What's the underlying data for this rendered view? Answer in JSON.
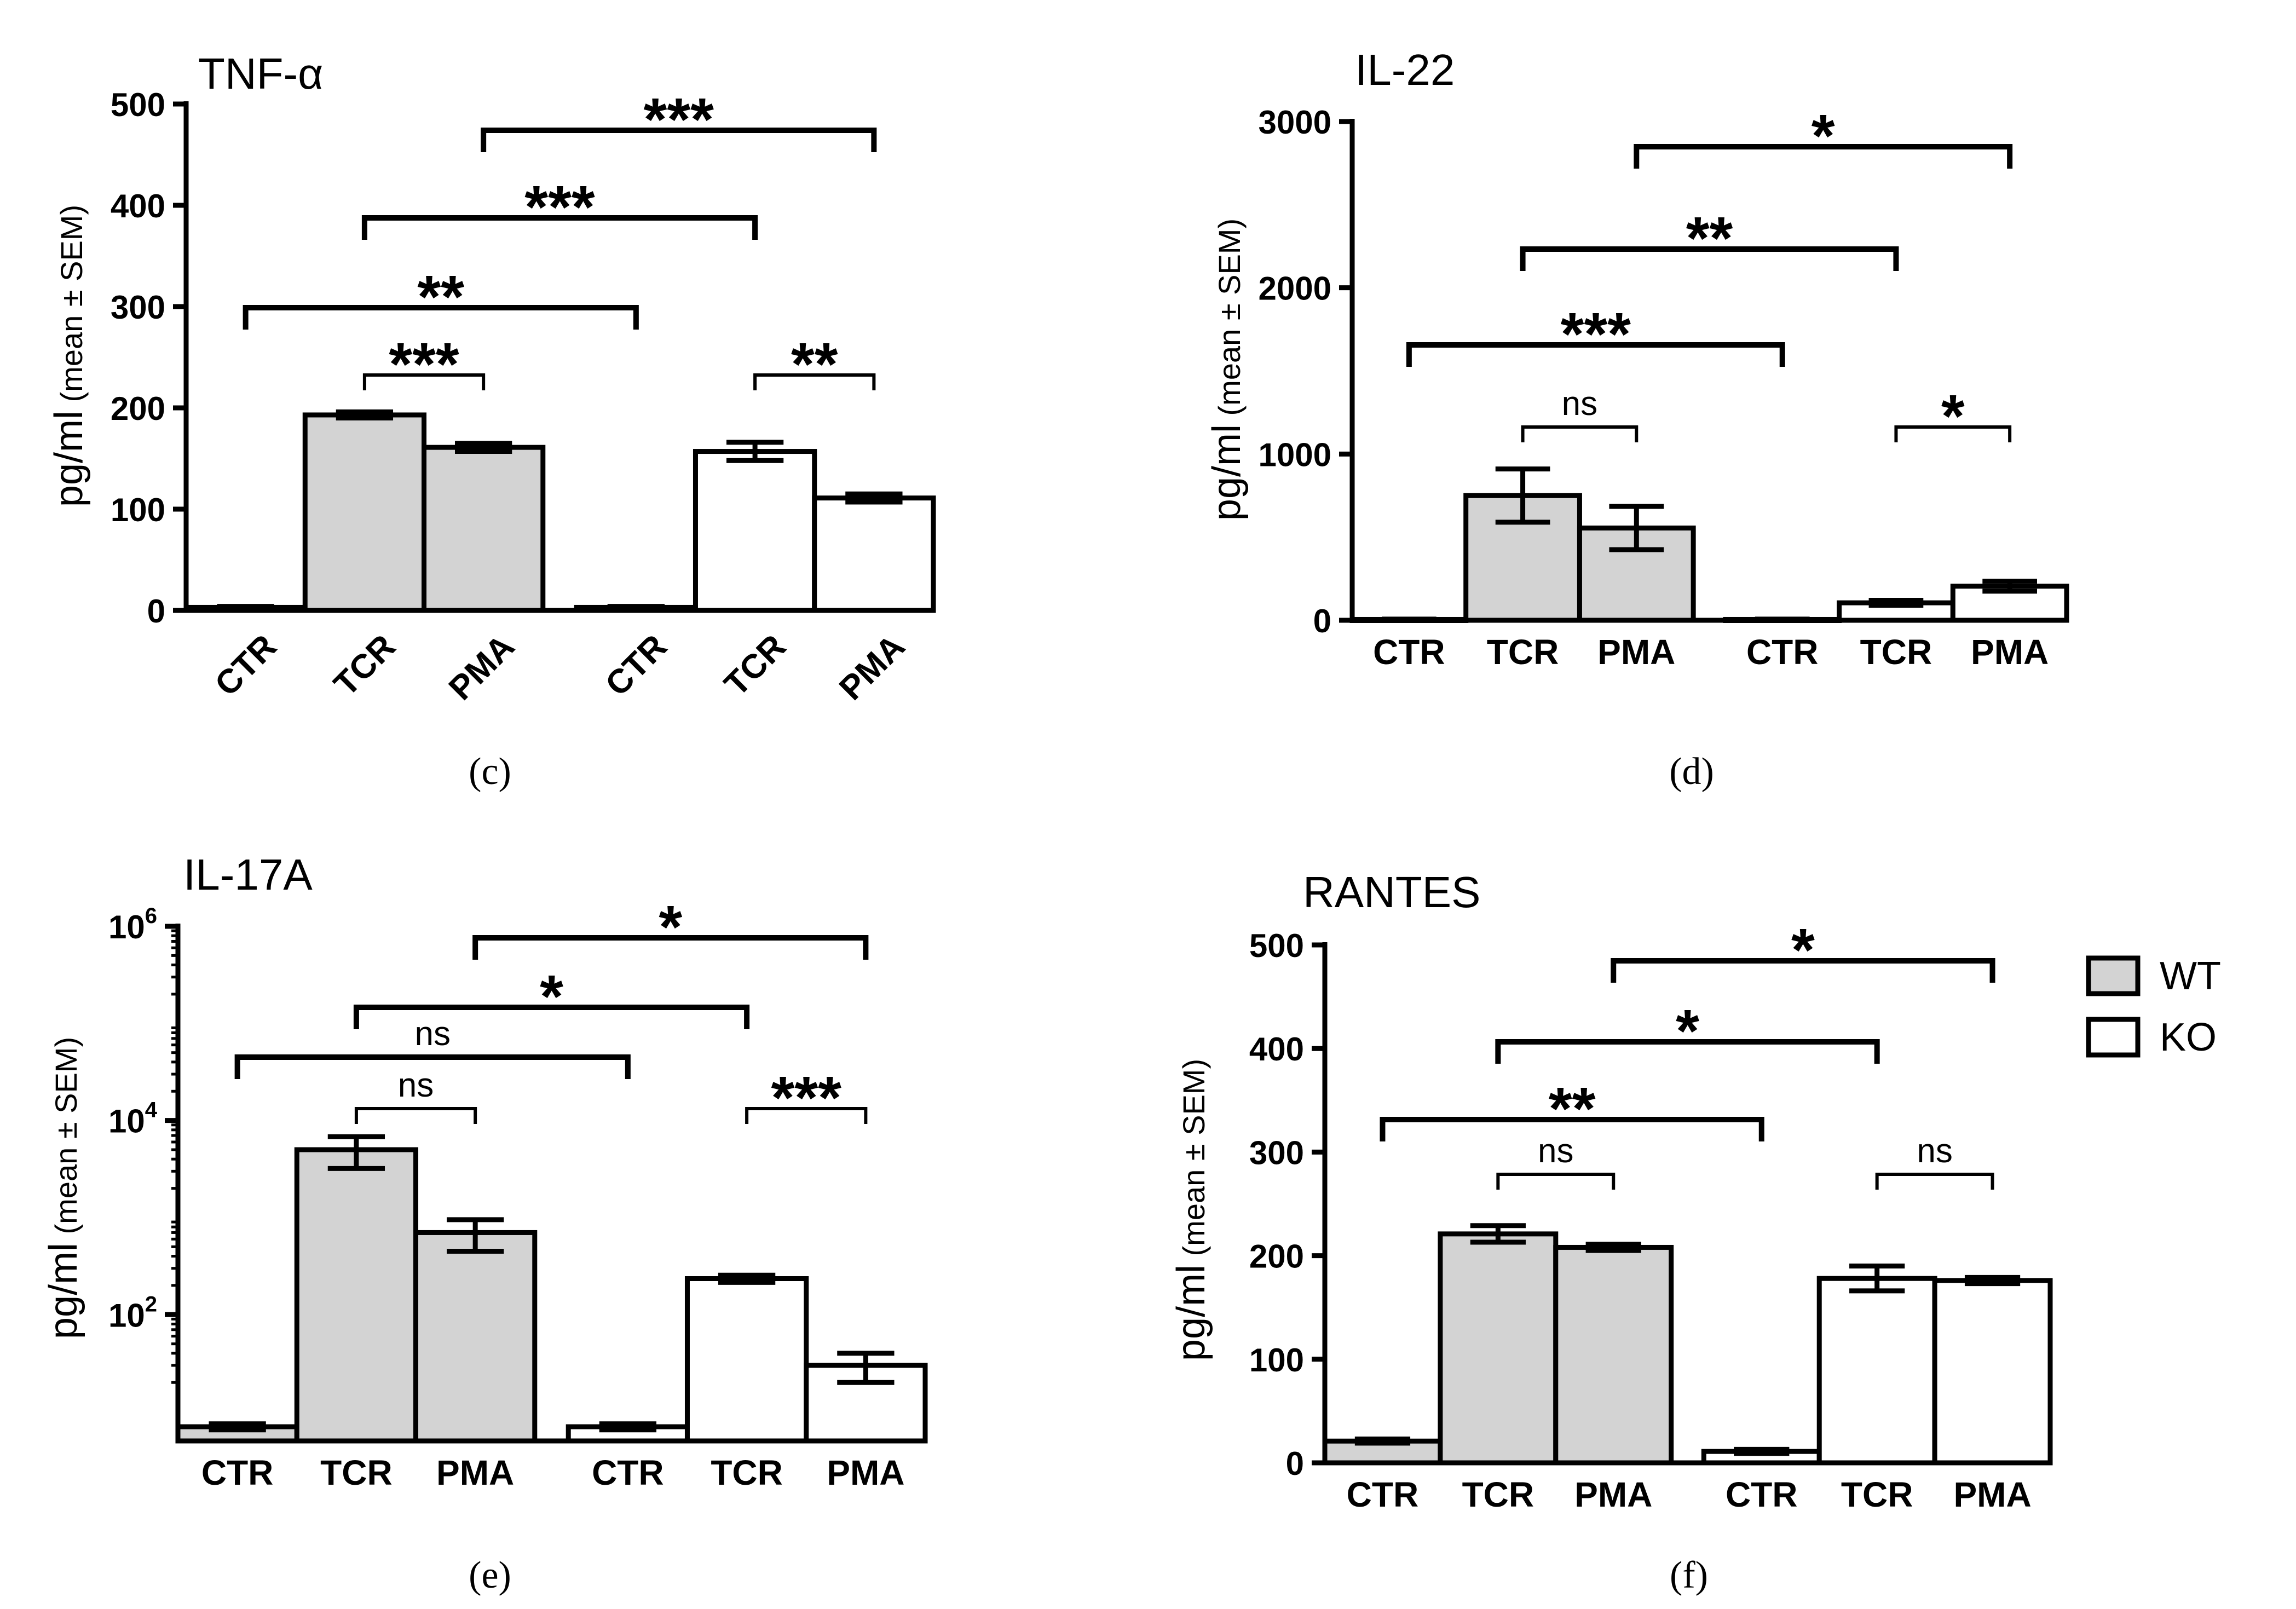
{
  "colors": {
    "wt_fill": "#d3d3d3",
    "ko_fill": "#ffffff",
    "stroke": "#000000"
  },
  "legend": {
    "position": "right-of-panel-f",
    "items": [
      {
        "label": "WT",
        "fill": "#d3d3d3"
      },
      {
        "label": "KO",
        "fill": "#ffffff"
      }
    ]
  },
  "chart_data": [
    {
      "id": "c",
      "panel_label": "(c)",
      "type": "bar",
      "title": "TNF-α",
      "ylabel_main": "pg/ml",
      "ylabel_sub": " (mean ± SEM)",
      "scale": "linear",
      "ylim": [
        0,
        500
      ],
      "yticks": [
        0,
        100,
        200,
        300,
        400,
        500
      ],
      "ytick_labels": [
        "0",
        "100",
        "200",
        "300",
        "400",
        "500"
      ],
      "x_labels_rotated": true,
      "categories": [
        "CTR",
        "TCR",
        "PMA",
        "CTR",
        "TCR",
        "PMA"
      ],
      "groups": [
        "WT",
        "WT",
        "WT",
        "KO",
        "KO",
        "KO"
      ],
      "values": [
        3,
        193,
        161,
        3,
        157,
        111
      ],
      "sem": [
        1,
        3,
        4,
        1,
        9,
        4
      ],
      "comparisons": [
        {
          "from": 1,
          "to": 2,
          "label": "***",
          "level": 0
        },
        {
          "from": 4,
          "to": 5,
          "label": "**",
          "level": 0
        },
        {
          "from": 0,
          "to": 3,
          "label": "**",
          "level": 1
        },
        {
          "from": 1,
          "to": 4,
          "label": "***",
          "level": 2
        },
        {
          "from": 2,
          "to": 5,
          "label": "***",
          "level": 3
        }
      ]
    },
    {
      "id": "d",
      "panel_label": "(d)",
      "type": "bar",
      "title": "IL-22",
      "ylabel_main": "pg/ml",
      "ylabel_sub": " (mean ± SEM)",
      "scale": "linear",
      "ylim": [
        0,
        3000
      ],
      "yticks": [
        0,
        1000,
        2000,
        3000
      ],
      "ytick_labels": [
        "0",
        "1000",
        "2000",
        "3000"
      ],
      "x_labels_rotated": false,
      "categories": [
        "CTR",
        "TCR",
        "PMA",
        "CTR",
        "TCR",
        "PMA"
      ],
      "groups": [
        "WT",
        "WT",
        "WT",
        "KO",
        "KO",
        "KO"
      ],
      "values": [
        5,
        750,
        555,
        5,
        105,
        205
      ],
      "sem": [
        2,
        160,
        130,
        2,
        15,
        30
      ],
      "comparisons": [
        {
          "from": 1,
          "to": 2,
          "label": "ns",
          "level": 0
        },
        {
          "from": 4,
          "to": 5,
          "label": "*",
          "level": 0
        },
        {
          "from": 0,
          "to": 3,
          "label": "***",
          "level": 1
        },
        {
          "from": 1,
          "to": 4,
          "label": "**",
          "level": 2
        },
        {
          "from": 2,
          "to": 5,
          "label": "*",
          "level": 3
        }
      ]
    },
    {
      "id": "e",
      "panel_label": "(e)",
      "type": "bar",
      "title": "IL-17A",
      "ylabel_main": "pg/ml",
      "ylabel_sub": " (mean ± SEM)",
      "scale": "log",
      "ylim": [
        5,
        1000000
      ],
      "yticks": [
        100,
        10000,
        1000000
      ],
      "ytick_labels": [
        "10^2",
        "10^4",
        "10^6"
      ],
      "x_labels_rotated": false,
      "categories": [
        "CTR",
        "TCR",
        "PMA",
        "CTR",
        "TCR",
        "PMA"
      ],
      "groups": [
        "WT",
        "WT",
        "WT",
        "KO",
        "KO",
        "KO"
      ],
      "values": [
        7,
        5000,
        700,
        7,
        235,
        30
      ],
      "sem": [
        0.5,
        1800,
        250,
        0.5,
        20,
        10
      ],
      "comparisons": [
        {
          "from": 1,
          "to": 2,
          "label": "ns",
          "level": 0
        },
        {
          "from": 4,
          "to": 5,
          "label": "***",
          "level": 0
        },
        {
          "from": 0,
          "to": 3,
          "label": "ns",
          "level": 1
        },
        {
          "from": 1,
          "to": 4,
          "label": "*",
          "level": 2
        },
        {
          "from": 2,
          "to": 5,
          "label": "*",
          "level": 3
        }
      ]
    },
    {
      "id": "f",
      "panel_label": "(f)",
      "type": "bar",
      "title": "RANTES",
      "ylabel_main": "pg/ml",
      "ylabel_sub": " (mean ± SEM)",
      "scale": "linear",
      "ylim": [
        0,
        500
      ],
      "yticks": [
        0,
        100,
        200,
        300,
        400,
        500
      ],
      "ytick_labels": [
        "0",
        "100",
        "200",
        "300",
        "400",
        "500"
      ],
      "x_labels_rotated": false,
      "categories": [
        "CTR",
        "TCR",
        "PMA",
        "CTR",
        "TCR",
        "PMA"
      ],
      "groups": [
        "WT",
        "WT",
        "WT",
        "KO",
        "KO",
        "KO"
      ],
      "values": [
        21,
        221,
        208,
        11,
        178,
        176
      ],
      "sem": [
        2,
        8,
        3,
        2,
        12,
        3
      ],
      "comparisons": [
        {
          "from": 1,
          "to": 2,
          "label": "ns",
          "level": 0
        },
        {
          "from": 4,
          "to": 5,
          "label": "ns",
          "level": 0
        },
        {
          "from": 0,
          "to": 3,
          "label": "**",
          "level": 1
        },
        {
          "from": 1,
          "to": 4,
          "label": "*",
          "level": 2
        },
        {
          "from": 2,
          "to": 5,
          "label": "*",
          "level": 3
        }
      ]
    }
  ]
}
